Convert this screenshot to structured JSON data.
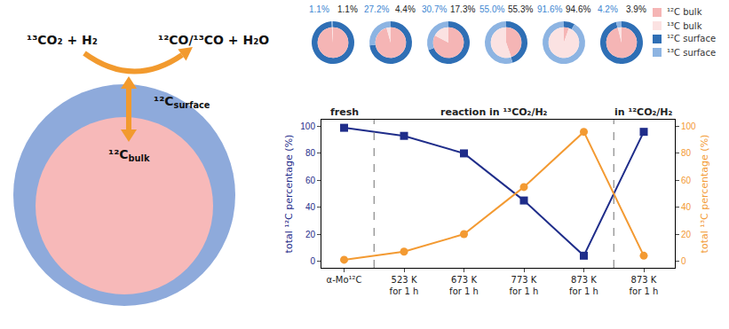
{
  "chart_data": [
    {
      "type": "line",
      "categories": [
        "α-Mo¹²C",
        "523 K\nfor 1 h",
        "673 K\nfor 1 h",
        "773 K\nfor 1 h",
        "873 K\nfor 1 h",
        "873 K\nfor 1 h"
      ],
      "ylabel": "total ¹²C percentage (%)",
      "y2label": "total ¹³C percentage (%)",
      "series": [
        {
          "color": "#1f2d8a",
          "marker": "square",
          "line_style": "solid",
          "axis": "y",
          "values": [
            99,
            93,
            80,
            45,
            4,
            96
          ]
        },
        {
          "color": "#f39a32",
          "marker": "circle",
          "line_style": "solid",
          "axis": "y2",
          "values": [
            1,
            7,
            20,
            55,
            96,
            4
          ]
        }
      ],
      "ylim": [
        -5,
        105
      ],
      "yticks": [
        0,
        20,
        40,
        60,
        80,
        100
      ],
      "y2lim": [
        -5,
        105
      ],
      "y2ticks": [
        0,
        20,
        40,
        60,
        80,
        100
      ],
      "grid": false,
      "phases": [
        {
          "label": "fresh",
          "count": 1
        },
        {
          "label": "reaction in ¹³CO₂/H₂",
          "count": 4
        },
        {
          "label": "in ¹²CO₂/H₂",
          "count": 1
        }
      ]
    },
    {
      "type": "donut",
      "legend": "upper right",
      "series": [
        {
          "name": "¹²C bulk",
          "color": "#f5b5b5"
        },
        {
          "name": "¹³C bulk",
          "color": "#fbe2e2"
        },
        {
          "name": "¹²C surface",
          "color": "#2f6fb5"
        },
        {
          "name": "¹³C surface",
          "color": "#8db4e2"
        }
      ],
      "donuts": [
        {
          "surface_values": [
            98.9,
            1.1
          ],
          "surface_label": "1.1%",
          "bulk_values": [
            98.9,
            1.1
          ],
          "bulk_label": "1.1%"
        },
        {
          "surface_values": [
            72.8,
            27.2
          ],
          "surface_label": "27.2%",
          "bulk_values": [
            95.6,
            4.4
          ],
          "bulk_label": "4.4%"
        },
        {
          "surface_values": [
            69.3,
            30.7
          ],
          "surface_label": "30.7%",
          "bulk_values": [
            82.7,
            17.3
          ],
          "bulk_label": "17.3%"
        },
        {
          "surface_values": [
            45.0,
            55.0
          ],
          "surface_label": "55.0%",
          "bulk_values": [
            44.7,
            55.3
          ],
          "bulk_label": "55.3%"
        },
        {
          "surface_values": [
            8.4,
            91.6
          ],
          "surface_label": "91.6%",
          "bulk_values": [
            5.4,
            94.6
          ],
          "bulk_label": "94.6%"
        },
        {
          "surface_values": [
            95.8,
            4.2
          ],
          "surface_label": "4.2%",
          "bulk_values": [
            96.1,
            3.9
          ],
          "bulk_label": "3.9%"
        }
      ]
    }
  ],
  "diagram": {
    "reactants": "¹³CO₂ + H₂",
    "products": "¹²CO/¹³CO + H₂O",
    "surface_label": {
      "text": "¹²C",
      "subscript": "surface"
    },
    "bulk_label": {
      "text": "¹²C",
      "subscript": "bulk"
    }
  }
}
